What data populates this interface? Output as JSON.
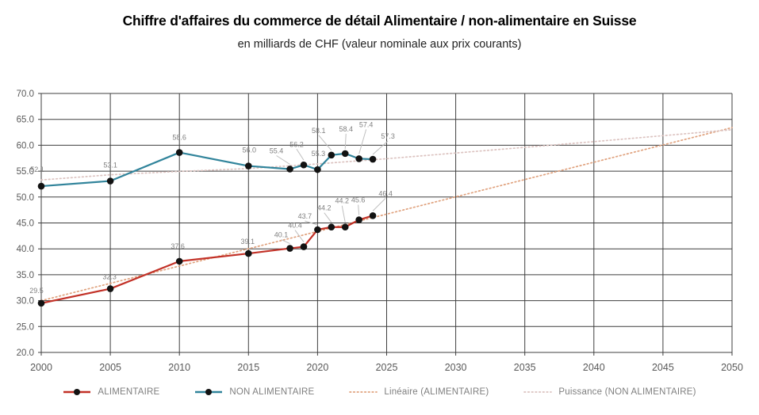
{
  "header": {
    "title": "Chiffre d'affaires du commerce de détail Alimentaire / non-alimentaire en Suisse",
    "subtitle": "en milliards de CHF (valeur nominale aux prix courants)"
  },
  "colors": {
    "alimentaire": "#c23127",
    "non_alimentaire": "#31849b",
    "lineaire_trend": "#e0a27e",
    "puissance_trend": "#dcc3c0",
    "marker": "#121212",
    "gridline": "#3f3f3f",
    "axis_text": "#595959",
    "data_label_text": "#7f7f7f",
    "leader_line": "#bfbfbf"
  },
  "chart_data": {
    "type": "line",
    "title": "Chiffre d'affaires du commerce de détail Alimentaire / non-alimentaire en Suisse",
    "subtitle": "en milliards de CHF (valeur nominale aux prix courants)",
    "grid": true,
    "legend_position": "bottom",
    "x_axis": {
      "min": 2000,
      "max": 2050,
      "tick_step": 5,
      "tick_values": [
        2000,
        2005,
        2010,
        2015,
        2020,
        2025,
        2030,
        2035,
        2040,
        2045,
        2050
      ],
      "tick_labels": [
        "2000",
        "2005",
        "2010",
        "2015",
        "2020",
        "2025",
        "2030",
        "2035",
        "2040",
        "2045",
        "2050"
      ]
    },
    "y_axis": {
      "min": 20,
      "max": 70,
      "tick_step": 5,
      "tick_values": [
        70,
        65,
        60,
        55,
        50,
        45,
        40,
        35,
        30,
        25,
        20
      ],
      "tick_labels": [
        "70.0",
        "65.0",
        "60.0",
        "55.0",
        "50.0",
        "45.0",
        "40.0",
        "35.0",
        "30.0",
        "25.0",
        "20.0"
      ]
    },
    "series": [
      {
        "name": "ALIMENTAIRE",
        "key": "alimentaire",
        "x": [
          2000,
          2005,
          2010,
          2015,
          2018,
          2019,
          2020,
          2021,
          2022,
          2023,
          2024
        ],
        "values": [
          29.5,
          32.3,
          37.6,
          39.1,
          40.1,
          40.4,
          43.7,
          44.2,
          44.2,
          45.6,
          46.4
        ],
        "labels": [
          "29.5",
          "32.3",
          "37.6",
          "39.1",
          "40.1",
          "40.4",
          "43.7",
          "44.2",
          "44.2",
          "45.6",
          "46.4"
        ],
        "label_offsets": [
          [
            -6,
            -13
          ],
          [
            -1,
            -12
          ],
          [
            -2,
            -16
          ],
          [
            -1,
            -12
          ],
          [
            -11,
            -14
          ],
          [
            -11,
            -24
          ],
          [
            -16,
            -14
          ],
          [
            -9,
            -21
          ],
          [
            -4,
            -30
          ],
          [
            -1,
            -22
          ],
          [
            16,
            -25
          ]
        ],
        "label_leader": [
          false,
          false,
          false,
          false,
          true,
          true,
          true,
          true,
          true,
          true,
          true
        ]
      },
      {
        "name": "NON ALIMENTAIRE",
        "key": "non-alimentaire",
        "x": [
          2000,
          2005,
          2010,
          2015,
          2018,
          2019,
          2020,
          2021,
          2022,
          2023,
          2024
        ],
        "values": [
          52.1,
          53.1,
          58.6,
          56.0,
          55.4,
          56.2,
          55.3,
          58.1,
          58.4,
          57.4,
          57.3
        ],
        "labels": [
          "52.1",
          "53.1",
          "58.6",
          "56.0",
          "55.4",
          "56.2",
          "55.3",
          "58.1",
          "58.4",
          "57.4",
          "57.3"
        ],
        "label_offsets": [
          [
            -5,
            -18
          ],
          [
            0,
            -17
          ],
          [
            0,
            -16
          ],
          [
            1,
            -17
          ],
          [
            -17,
            -20
          ],
          [
            -9,
            -23
          ],
          [
            1,
            -17
          ],
          [
            -16,
            -28
          ],
          [
            1,
            -28
          ],
          [
            9,
            -40
          ],
          [
            19,
            -26
          ]
        ],
        "label_leader": [
          false,
          false,
          false,
          false,
          true,
          true,
          false,
          true,
          true,
          true,
          true
        ]
      }
    ],
    "trendlines": [
      {
        "name": "Linéaire (ALIMENTAIRE)",
        "key": "lineaire-alimentaire",
        "style": "dotted",
        "x": [
          2000,
          2050
        ],
        "values": [
          30.0,
          63.4
        ]
      },
      {
        "name": "Puissance (NON ALIMENTAIRE)",
        "key": "puissance-non-alimentaire",
        "style": "dotted",
        "x": [
          2000,
          2005,
          2010,
          2015,
          2020,
          2025,
          2030,
          2035,
          2040,
          2045,
          2050
        ],
        "values": [
          53.3,
          54.3,
          54.95,
          55.5,
          56.4,
          57.4,
          58.5,
          59.6,
          60.7,
          61.85,
          63.0
        ]
      }
    ]
  },
  "legend": {
    "entries": [
      {
        "key": "alimentaire",
        "label": "ALIMENTAIRE",
        "swatch": "line-marker",
        "color_ref": "alimentaire"
      },
      {
        "key": "non-alimentaire",
        "label": "NON ALIMENTAIRE",
        "swatch": "line-marker",
        "color_ref": "non_alimentaire"
      },
      {
        "key": "lineaire-alimentaire",
        "label": "Linéaire (ALIMENTAIRE)",
        "swatch": "dotted",
        "color_ref": "lineaire_trend"
      },
      {
        "key": "puissance-non-alimentaire",
        "label": "Puissance (NON ALIMENTAIRE)",
        "swatch": "dotted",
        "color_ref": "puissance_trend"
      }
    ]
  }
}
